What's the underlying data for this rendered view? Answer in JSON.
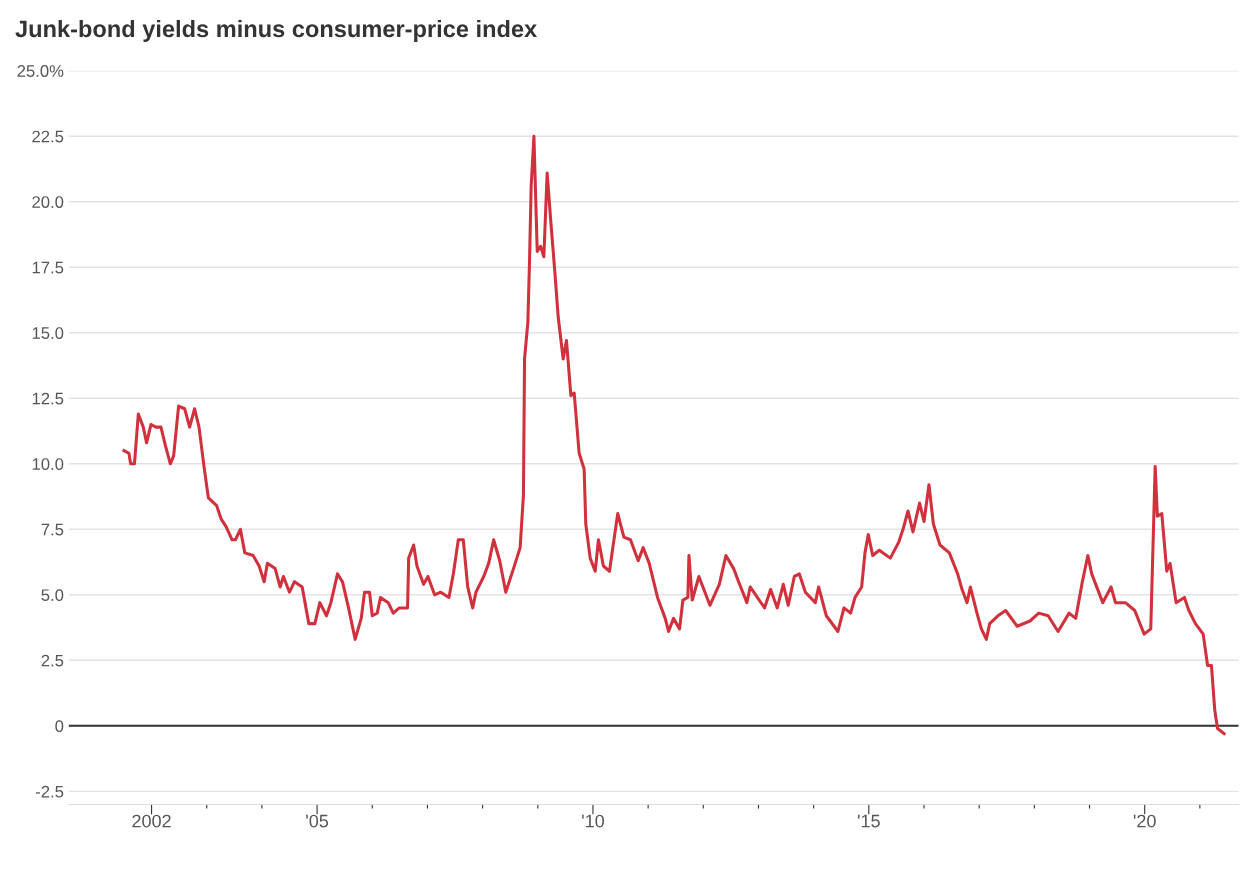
{
  "chart_data": {
    "type": "line",
    "title": "Junk-bond yields minus consumer-price index",
    "x": [
      2001.5,
      2001.59,
      2001.62,
      2001.69,
      2001.76,
      2001.85,
      2001.91,
      2001.99,
      2002.08,
      2002.17,
      2002.25,
      2002.34,
      2002.4,
      2002.49,
      2002.6,
      2002.69,
      2002.78,
      2002.86,
      2002.95,
      2003.03,
      2003.18,
      2003.26,
      2003.35,
      2003.46,
      2003.52,
      2003.61,
      2003.69,
      2003.84,
      2003.95,
      2004.04,
      2004.1,
      2004.24,
      2004.33,
      2004.39,
      2004.5,
      2004.59,
      2004.73,
      2004.85,
      2004.96,
      2005.05,
      2005.17,
      2005.25,
      2005.37,
      2005.46,
      2005.57,
      2005.69,
      2005.8,
      2005.86,
      2005.95,
      2006.0,
      2006.09,
      2006.15,
      2006.29,
      2006.38,
      2006.49,
      2006.64,
      2006.66,
      2006.75,
      2006.81,
      2006.93,
      2007.01,
      2007.13,
      2007.24,
      2007.39,
      2007.47,
      2007.56,
      2007.65,
      2007.73,
      2007.82,
      2007.88,
      2008.02,
      2008.11,
      2008.2,
      2008.31,
      2008.42,
      2008.56,
      2008.68,
      2008.74,
      2008.76,
      2008.82,
      2008.85,
      2008.88,
      2008.93,
      2008.99,
      2009.05,
      2009.11,
      2009.17,
      2009.23,
      2009.31,
      2009.37,
      2009.46,
      2009.52,
      2009.6,
      2009.66,
      2009.75,
      2009.84,
      2009.87,
      2009.95,
      2010.04,
      2010.1,
      2010.19,
      2010.3,
      2010.36,
      2010.45,
      2010.56,
      2010.68,
      2010.82,
      2010.91,
      2011.02,
      2011.17,
      2011.31,
      2011.37,
      2011.46,
      2011.57,
      2011.63,
      2011.72,
      2011.74,
      2011.8,
      2011.92,
      2012.12,
      2012.29,
      2012.41,
      2012.55,
      2012.64,
      2012.79,
      2012.85,
      2013.11,
      2013.22,
      2013.34,
      2013.45,
      2013.54,
      2013.65,
      2013.74,
      2013.85,
      2014.03,
      2014.09,
      2014.23,
      2014.44,
      2014.55,
      2014.67,
      2014.75,
      2014.87,
      2014.93,
      2014.99,
      2015.07,
      2015.19,
      2015.39,
      2015.54,
      2015.62,
      2015.71,
      2015.8,
      2015.92,
      2016.0,
      2016.09,
      2016.17,
      2016.29,
      2016.46,
      2016.61,
      2016.69,
      2016.78,
      2016.84,
      2016.96,
      2017.04,
      2017.13,
      2017.19,
      2017.34,
      2017.48,
      2017.69,
      2017.92,
      2018.08,
      2018.25,
      2018.43,
      2018.63,
      2018.75,
      2018.87,
      2018.97,
      2019.04,
      2019.24,
      2019.39,
      2019.47,
      2019.65,
      2019.82,
      2019.99,
      2020.11,
      2020.19,
      2020.23,
      2020.31,
      2020.4,
      2020.46,
      2020.57,
      2020.72,
      2020.8,
      2020.92,
      2021.06,
      2021.14,
      2021.21,
      2021.27,
      2021.32,
      2021.44
    ],
    "series": [
      {
        "color": "#d0313d",
        "values": [
          10.5,
          10.4,
          10.0,
          10.0,
          11.9,
          11.4,
          10.8,
          11.5,
          11.4,
          11.4,
          10.7,
          10.0,
          10.3,
          12.2,
          12.1,
          11.4,
          12.1,
          11.4,
          9.9,
          8.7,
          8.4,
          7.9,
          7.6,
          7.1,
          7.1,
          7.5,
          6.6,
          6.5,
          6.1,
          5.5,
          6.2,
          6.0,
          5.3,
          5.7,
          5.1,
          5.5,
          5.3,
          3.9,
          3.9,
          4.7,
          4.2,
          4.7,
          5.8,
          5.5,
          4.5,
          3.3,
          4.1,
          5.1,
          5.1,
          4.2,
          4.3,
          4.9,
          4.7,
          4.3,
          4.5,
          4.5,
          6.4,
          6.9,
          6.1,
          5.4,
          5.7,
          5.0,
          5.1,
          4.9,
          5.8,
          7.1,
          7.1,
          5.3,
          4.5,
          5.1,
          5.7,
          6.2,
          7.1,
          6.3,
          5.1,
          6.0,
          6.8,
          8.8,
          14.0,
          15.4,
          17.7,
          20.6,
          22.5,
          18.1,
          18.3,
          17.9,
          21.1,
          19.4,
          17.3,
          15.6,
          14.0,
          14.7,
          12.6,
          12.7,
          10.4,
          9.8,
          7.7,
          6.4,
          5.9,
          7.1,
          6.1,
          5.9,
          6.8,
          8.1,
          7.2,
          7.1,
          6.3,
          6.8,
          6.2,
          4.9,
          4.1,
          3.6,
          4.1,
          3.7,
          4.8,
          4.9,
          6.5,
          4.8,
          5.7,
          4.6,
          5.4,
          6.5,
          6.0,
          5.5,
          4.7,
          5.3,
          4.5,
          5.2,
          4.5,
          5.4,
          4.6,
          5.7,
          5.8,
          5.1,
          4.7,
          5.3,
          4.2,
          3.6,
          4.5,
          4.3,
          4.9,
          5.3,
          6.6,
          7.3,
          6.5,
          6.7,
          6.4,
          7.0,
          7.5,
          8.2,
          7.4,
          8.5,
          7.8,
          9.2,
          7.7,
          6.9,
          6.6,
          5.8,
          5.2,
          4.7,
          5.3,
          4.3,
          3.7,
          3.3,
          3.9,
          4.2,
          4.4,
          3.8,
          4.0,
          4.3,
          4.2,
          3.6,
          4.3,
          4.1,
          5.5,
          6.5,
          5.8,
          4.7,
          5.3,
          4.7,
          4.7,
          4.4,
          3.5,
          3.7,
          9.9,
          8.0,
          8.1,
          5.9,
          6.2,
          4.7,
          4.9,
          4.4,
          3.9,
          3.5,
          2.3,
          2.3,
          0.6,
          -0.1,
          -0.3
        ]
      }
    ],
    "xlim": [
      2000.5,
      2021.7
    ],
    "xticks": [
      {
        "value": 2002,
        "label": "2002"
      },
      {
        "value": 2003,
        "label": null
      },
      {
        "value": 2004,
        "label": null
      },
      {
        "value": 2005,
        "label": "'05"
      },
      {
        "value": 2006,
        "label": null
      },
      {
        "value": 2007,
        "label": null
      },
      {
        "value": 2008,
        "label": null
      },
      {
        "value": 2009,
        "label": null
      },
      {
        "value": 2010,
        "label": "'10"
      },
      {
        "value": 2011,
        "label": null
      },
      {
        "value": 2012,
        "label": null
      },
      {
        "value": 2013,
        "label": null
      },
      {
        "value": 2014,
        "label": null
      },
      {
        "value": 2015,
        "label": "'15"
      },
      {
        "value": 2016,
        "label": null
      },
      {
        "value": 2017,
        "label": null
      },
      {
        "value": 2018,
        "label": null
      },
      {
        "value": 2019,
        "label": null
      },
      {
        "value": 2020,
        "label": "'20"
      },
      {
        "value": 2021,
        "label": null
      }
    ],
    "ylim": [
      -3,
      25
    ],
    "yticks": [
      {
        "value": -2.5,
        "label": "-2.5"
      },
      {
        "value": 0,
        "label": "0"
      },
      {
        "value": 2.5,
        "label": "2.5"
      },
      {
        "value": 5,
        "label": "5.0"
      },
      {
        "value": 7.5,
        "label": "7.5"
      },
      {
        "value": 10,
        "label": "10.0"
      },
      {
        "value": 12.5,
        "label": "12.5"
      },
      {
        "value": 15,
        "label": "15.0"
      },
      {
        "value": 17.5,
        "label": "17.5"
      },
      {
        "value": 20,
        "label": "20.0"
      },
      {
        "value": 22.5,
        "label": "22.5"
      },
      {
        "value": 25,
        "label": "25.0%"
      }
    ],
    "grid": "y",
    "ref_lines": [
      {
        "axis": "y",
        "value": 0,
        "color": "#333333"
      }
    ]
  }
}
